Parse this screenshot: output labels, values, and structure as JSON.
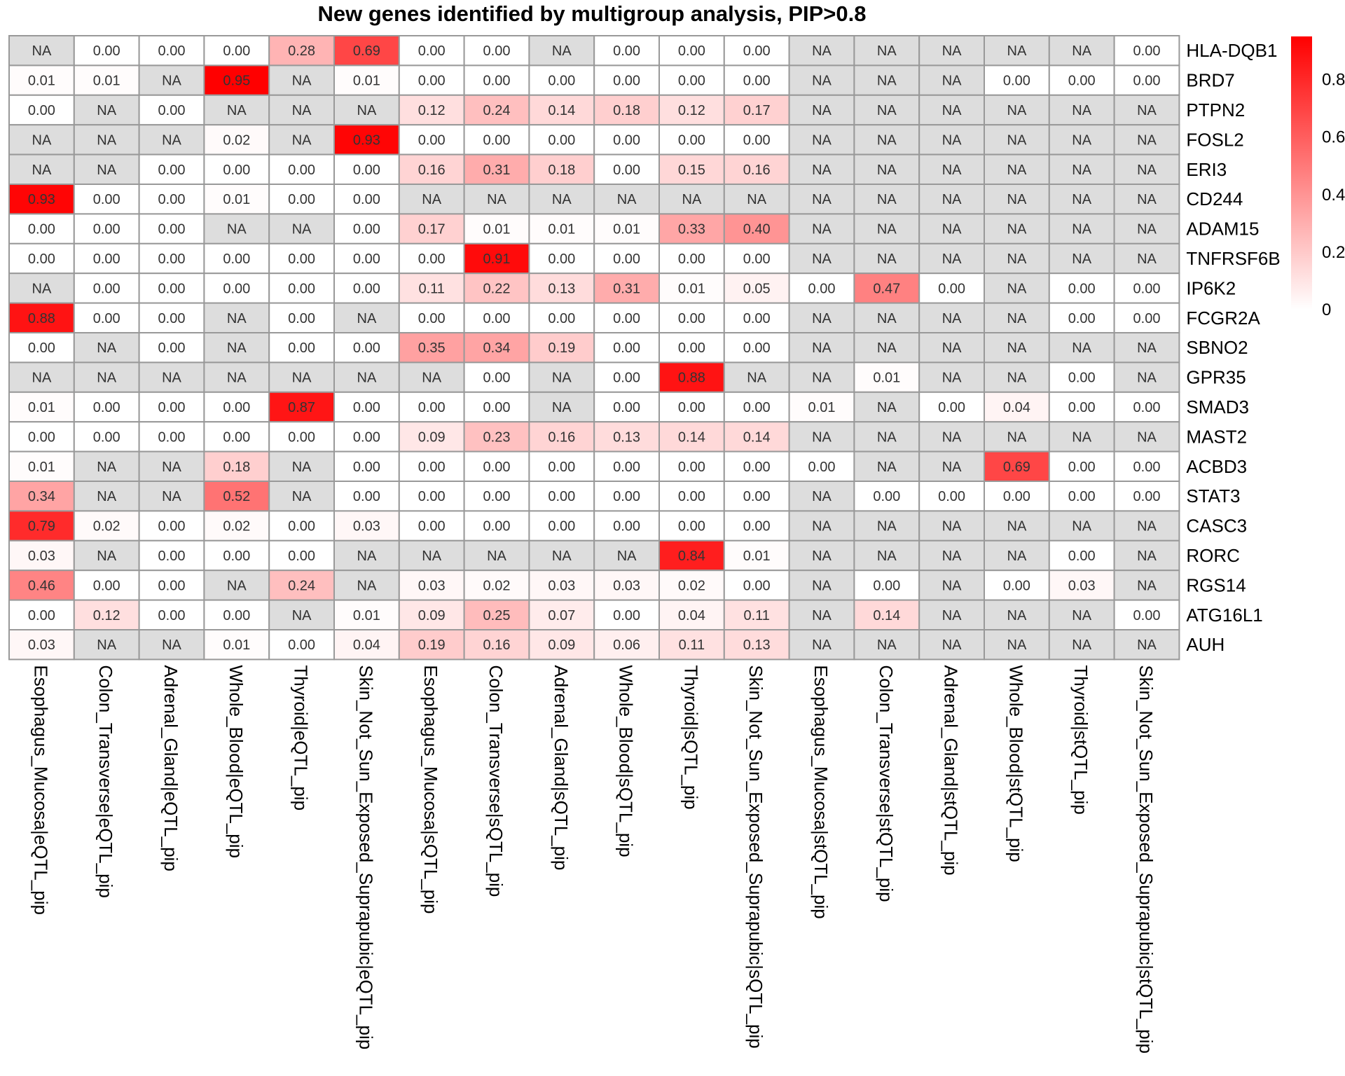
{
  "chart_data": {
    "type": "heatmap",
    "title": "New genes identified by multigroup analysis, PIP>0.8",
    "rows": [
      "HLA-DQB1",
      "BRD7",
      "PTPN2",
      "FOSL2",
      "ERI3",
      "CD244",
      "ADAM15",
      "TNFRSF6B",
      "IP6K2",
      "FCGR2A",
      "SBNO2",
      "GPR35",
      "SMAD3",
      "MAST2",
      "ACBD3",
      "STAT3",
      "CASC3",
      "RORC",
      "RGS14",
      "ATG16L1",
      "AUH"
    ],
    "columns": [
      "Esophagus_Mucosa|eQTL_pip",
      "Colon_Transverse|eQTL_pip",
      "Adrenal_Gland|eQTL_pip",
      "Whole_Blood|eQTL_pip",
      "Thyroid|eQTL_pip",
      "Skin_Not_Sun_Exposed_Suprapubic|eQTL_pip",
      "Esophagus_Mucosa|sQTL_pip",
      "Colon_Transverse|sQTL_pip",
      "Adrenal_Gland|sQTL_pip",
      "Whole_Blood|sQTL_pip",
      "Thyroid|sQTL_pip",
      "Skin_Not_Sun_Exposed_Suprapubic|sQTL_pip",
      "Esophagus_Mucosa|stQTL_pip",
      "Colon_Transverse|stQTL_pip",
      "Adrenal_Gland|stQTL_pip",
      "Whole_Blood|stQTL_pip",
      "Thyroid|stQTL_pip",
      "Skin_Not_Sun_Exposed_Suprapubic|stQTL_pip"
    ],
    "values": [
      [
        null,
        0.0,
        0.0,
        0.0,
        0.28,
        0.69,
        0.0,
        0.0,
        null,
        0.0,
        0.0,
        0.0,
        null,
        null,
        null,
        null,
        null,
        0.0
      ],
      [
        0.01,
        0.01,
        null,
        0.95,
        null,
        0.01,
        0.0,
        0.0,
        0.0,
        0.0,
        0.0,
        0.0,
        null,
        null,
        null,
        0.0,
        0.0,
        0.0
      ],
      [
        0.0,
        null,
        0.0,
        null,
        null,
        null,
        0.12,
        0.24,
        0.14,
        0.18,
        0.12,
        0.17,
        null,
        null,
        null,
        null,
        null,
        null
      ],
      [
        null,
        null,
        null,
        0.02,
        null,
        0.93,
        0.0,
        0.0,
        0.0,
        0.0,
        0.0,
        0.0,
        null,
        null,
        null,
        null,
        null,
        null
      ],
      [
        null,
        null,
        0.0,
        0.0,
        0.0,
        0.0,
        0.16,
        0.31,
        0.18,
        0.0,
        0.15,
        0.16,
        null,
        null,
        null,
        null,
        null,
        null
      ],
      [
        0.93,
        0.0,
        0.0,
        0.01,
        0.0,
        0.0,
        null,
        null,
        null,
        null,
        null,
        null,
        null,
        null,
        null,
        null,
        null,
        null
      ],
      [
        0.0,
        0.0,
        0.0,
        null,
        null,
        0.0,
        0.17,
        0.01,
        0.01,
        0.01,
        0.33,
        0.4,
        null,
        null,
        null,
        null,
        null,
        null
      ],
      [
        0.0,
        0.0,
        0.0,
        0.0,
        0.0,
        0.0,
        0.0,
        0.91,
        0.0,
        0.0,
        0.0,
        0.0,
        null,
        null,
        null,
        null,
        null,
        null
      ],
      [
        null,
        0.0,
        0.0,
        0.0,
        0.0,
        0.0,
        0.11,
        0.22,
        0.13,
        0.31,
        0.01,
        0.05,
        0.0,
        0.47,
        0.0,
        null,
        0.0,
        0.0
      ],
      [
        0.88,
        0.0,
        0.0,
        null,
        0.0,
        null,
        0.0,
        0.0,
        0.0,
        0.0,
        0.0,
        0.0,
        null,
        null,
        null,
        null,
        0.0,
        0.0
      ],
      [
        0.0,
        null,
        0.0,
        null,
        0.0,
        0.0,
        0.35,
        0.34,
        0.19,
        0.0,
        0.0,
        0.0,
        null,
        null,
        null,
        null,
        null,
        null
      ],
      [
        null,
        null,
        null,
        null,
        null,
        null,
        null,
        0.0,
        null,
        0.0,
        0.88,
        null,
        null,
        0.01,
        null,
        null,
        0.0,
        null
      ],
      [
        0.01,
        0.0,
        0.0,
        0.0,
        0.87,
        0.0,
        0.0,
        0.0,
        null,
        0.0,
        0.0,
        0.0,
        0.01,
        null,
        0.0,
        0.04,
        0.0,
        0.0
      ],
      [
        0.0,
        0.0,
        0.0,
        0.0,
        0.0,
        0.0,
        0.09,
        0.23,
        0.16,
        0.13,
        0.14,
        0.14,
        null,
        null,
        null,
        null,
        null,
        null
      ],
      [
        0.01,
        null,
        null,
        0.18,
        null,
        0.0,
        0.0,
        0.0,
        0.0,
        0.0,
        0.0,
        0.0,
        0.0,
        null,
        null,
        0.69,
        0.0,
        0.0
      ],
      [
        0.34,
        null,
        null,
        0.52,
        null,
        0.0,
        0.0,
        0.0,
        0.0,
        0.0,
        0.0,
        0.0,
        null,
        0.0,
        0.0,
        0.0,
        0.0,
        0.0
      ],
      [
        0.79,
        0.02,
        0.0,
        0.02,
        0.0,
        0.03,
        0.0,
        0.0,
        0.0,
        0.0,
        0.0,
        0.0,
        null,
        null,
        null,
        null,
        null,
        null
      ],
      [
        0.03,
        null,
        0.0,
        0.0,
        0.0,
        null,
        null,
        null,
        null,
        null,
        0.84,
        0.01,
        null,
        null,
        null,
        null,
        0.0,
        null
      ],
      [
        0.46,
        0.0,
        0.0,
        null,
        0.24,
        null,
        0.03,
        0.02,
        0.03,
        0.03,
        0.02,
        0.0,
        null,
        0.0,
        null,
        0.0,
        0.03,
        null
      ],
      [
        0.0,
        0.12,
        0.0,
        0.0,
        null,
        0.01,
        0.09,
        0.25,
        0.07,
        0.0,
        0.04,
        0.11,
        null,
        0.14,
        null,
        null,
        null,
        0.0
      ],
      [
        0.03,
        null,
        null,
        0.01,
        0.0,
        0.04,
        0.19,
        0.16,
        0.09,
        0.06,
        0.11,
        0.13,
        null,
        null,
        null,
        null,
        null,
        null
      ]
    ],
    "na_label": "NA",
    "value_range": [
      0,
      0.95
    ],
    "colorscale": [
      "#ffffff",
      "#ff0000"
    ],
    "na_color": "#dddddd",
    "border_color": "#999999",
    "legend": {
      "position": "right",
      "ticks": [
        {
          "value": 0,
          "label": "0"
        },
        {
          "value": 0.2,
          "label": "0.2"
        },
        {
          "value": 0.4,
          "label": "0.4"
        },
        {
          "value": 0.6,
          "label": "0.6"
        },
        {
          "value": 0.8,
          "label": "0.8"
        }
      ]
    }
  }
}
